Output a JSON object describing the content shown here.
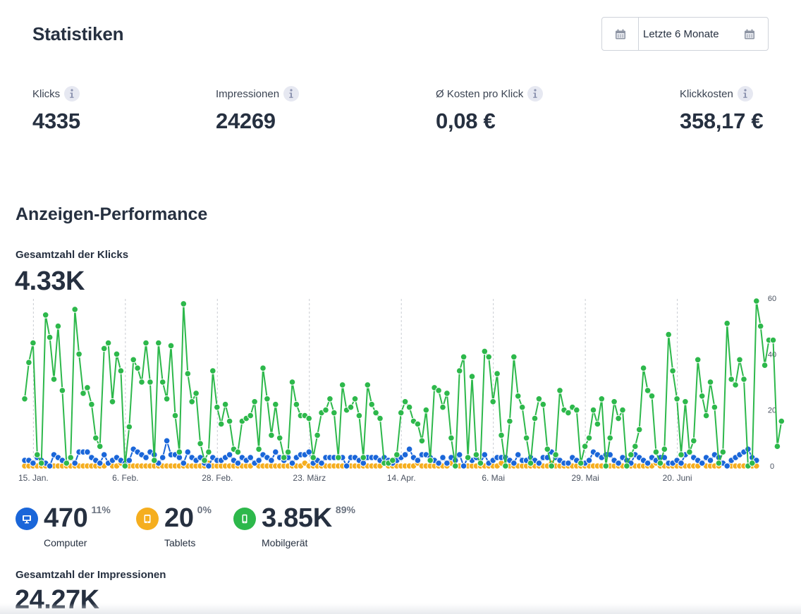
{
  "header": {
    "title": "Statistiken",
    "date_range": {
      "label": "Letzte 6 Monate",
      "left_icon": "calendar-icon",
      "right_icon": "calendar-icon"
    }
  },
  "kpis": [
    {
      "label": "Klicks",
      "value": "4335",
      "icon": "info-icon"
    },
    {
      "label": "Impressionen",
      "value": "24269",
      "icon": "info-icon"
    },
    {
      "label": "Ø Kosten pro Klick",
      "value": "0,08 €",
      "icon": "info-icon"
    },
    {
      "label": "Klickkosten",
      "value": "358,17 €",
      "icon": "info-icon"
    }
  ],
  "performance": {
    "title": "Anzeigen-Performance",
    "clicks_label": "Gesamtzahl der Klicks",
    "clicks_total": "4.33K",
    "impressions_label": "Gesamtzahl der Impressionen",
    "impressions_total": "24.27K",
    "devices": [
      {
        "name": "Computer",
        "value": "470",
        "percent": "11%",
        "color": "#1a66d9",
        "icon": "monitor-icon"
      },
      {
        "name": "Tablets",
        "value": "20",
        "percent": "0%",
        "color": "#f5ae1f",
        "icon": "tablet-icon"
      },
      {
        "name": "Mobilgerät",
        "value": "3.85K",
        "percent": "89%",
        "color": "#2db84b",
        "icon": "smartphone-icon"
      }
    ]
  },
  "chart_data": {
    "type": "line",
    "title": "Gesamtzahl der Klicks",
    "xlabel": "",
    "ylabel": "",
    "ylim": [
      0,
      60
    ],
    "y_ticks": [
      0,
      20,
      40,
      60
    ],
    "y_axis_side": "right",
    "x_start": "13. Jan.",
    "x_step": "1 day",
    "x_ticks": [
      {
        "label": "15. Jan.",
        "day_index": 2
      },
      {
        "label": "6. Feb.",
        "day_index": 24
      },
      {
        "label": "28. Feb.",
        "day_index": 46
      },
      {
        "label": "23. März",
        "day_index": 68
      },
      {
        "label": "14. Apr.",
        "day_index": 90
      },
      {
        "label": "6. Mai",
        "day_index": 112
      },
      {
        "label": "29. Mai",
        "day_index": 134
      },
      {
        "label": "20. Juni",
        "day_index": 156
      }
    ],
    "grid": "vertical-dashed",
    "legend": "none",
    "series": [
      {
        "name": "Mobilgerät",
        "color": "#2db84b",
        "values": [
          24,
          37,
          44,
          4,
          1,
          54,
          46,
          31,
          50,
          27,
          1,
          3,
          56,
          40,
          26,
          28,
          22,
          10,
          7,
          42,
          44,
          23,
          40,
          34,
          0,
          14,
          38,
          35,
          30,
          44,
          30,
          2,
          44,
          30,
          24,
          43,
          18,
          5,
          58,
          33,
          23,
          26,
          8,
          2,
          5,
          34,
          21,
          15,
          22,
          16,
          6,
          5,
          16,
          17,
          18,
          23,
          6,
          35,
          24,
          11,
          22,
          10,
          3,
          5,
          30,
          22,
          18,
          18,
          17,
          3,
          11,
          19,
          20,
          24,
          19,
          3,
          29,
          20,
          21,
          24,
          18,
          3,
          29,
          22,
          19,
          17,
          1,
          1,
          2,
          4,
          19,
          23,
          21,
          16,
          15,
          9,
          20,
          2,
          28,
          27,
          21,
          26,
          10,
          0,
          34,
          39,
          3,
          32,
          4,
          1,
          41,
          39,
          23,
          33,
          11,
          0,
          16,
          39,
          25,
          21,
          10,
          1,
          17,
          24,
          22,
          6,
          0,
          4,
          27,
          20,
          19,
          21,
          20,
          1,
          7,
          10,
          20,
          15,
          24,
          0,
          10,
          23,
          17,
          20,
          0,
          4,
          7,
          13,
          35,
          27,
          25,
          5,
          1,
          6,
          47,
          34,
          24,
          4,
          23,
          5,
          9,
          38,
          25,
          18,
          30,
          21,
          1,
          5,
          51,
          31,
          29,
          38,
          31,
          0,
          1,
          59,
          50,
          36,
          45,
          45,
          7,
          16
        ]
      },
      {
        "name": "Computer",
        "color": "#1a66d9",
        "values": [
          2,
          2,
          1,
          3,
          2,
          1,
          0,
          4,
          3,
          2,
          1,
          3,
          1,
          5,
          5,
          5,
          3,
          2,
          1,
          4,
          1,
          2,
          3,
          2,
          1,
          2,
          6,
          5,
          4,
          3,
          5,
          4,
          1,
          3,
          9,
          4,
          4,
          3,
          1,
          5,
          3,
          2,
          3,
          1,
          0,
          3,
          2,
          2,
          3,
          4,
          2,
          1,
          3,
          2,
          3,
          1,
          2,
          4,
          3,
          2,
          5,
          3,
          2,
          3,
          1,
          3,
          4,
          4,
          5,
          1,
          2,
          1,
          3,
          3,
          3,
          3,
          3,
          0,
          3,
          3,
          2,
          1,
          3,
          3,
          3,
          2,
          3,
          2,
          1,
          2,
          3,
          4,
          6,
          3,
          2,
          4,
          4,
          3,
          2,
          1,
          3,
          1,
          3,
          2,
          4,
          0,
          3,
          2,
          3,
          1,
          4,
          1,
          2,
          3,
          3,
          3,
          2,
          1,
          4,
          2,
          2,
          3,
          2,
          1,
          3,
          3,
          5,
          3,
          2,
          1,
          1,
          3,
          2,
          1,
          1,
          2,
          5,
          4,
          3,
          4,
          4,
          2,
          1,
          3,
          2,
          1,
          4,
          3,
          2,
          1,
          3,
          2,
          3,
          3,
          1,
          1,
          2,
          1,
          4,
          5,
          3,
          2,
          1,
          3,
          2,
          4,
          3,
          1,
          0,
          2,
          3,
          4,
          5,
          6,
          3,
          2
        ]
      },
      {
        "name": "Tablets",
        "color": "#f5ae1f",
        "values": [
          0,
          0,
          0,
          0,
          0,
          0,
          0,
          0,
          0,
          0,
          0,
          0,
          0,
          0,
          0,
          0,
          0,
          0,
          0,
          0,
          1,
          0,
          0,
          1,
          0,
          0,
          0,
          0,
          0,
          0,
          0,
          0,
          0,
          0,
          0,
          0,
          0,
          0,
          0,
          0,
          0,
          0,
          0,
          0,
          1,
          0,
          0,
          0,
          0,
          0,
          0,
          0,
          0,
          0,
          0,
          1,
          0,
          0,
          0,
          0,
          0,
          0,
          0,
          0,
          0,
          0,
          0,
          1,
          0,
          0,
          0,
          0,
          0,
          0,
          0,
          0,
          0,
          0,
          0,
          0,
          0,
          0,
          0,
          0,
          0,
          0,
          1,
          0,
          0,
          0,
          0,
          0,
          0,
          0,
          1,
          0,
          0,
          0,
          0,
          0,
          0,
          0,
          1,
          0,
          0,
          0,
          0,
          0,
          0,
          0,
          0,
          0,
          0,
          0,
          1,
          0,
          0,
          0,
          0,
          0,
          0,
          0,
          0,
          0,
          0,
          0,
          1,
          0,
          0,
          0,
          0,
          0,
          0,
          0,
          0,
          0,
          0,
          0,
          0,
          0,
          0,
          0,
          0,
          0,
          0,
          0,
          0,
          0,
          0,
          0,
          0,
          1,
          0,
          0,
          0,
          0,
          0,
          0,
          0,
          0,
          0,
          0,
          1,
          0,
          0,
          0,
          0,
          1,
          0,
          0,
          0,
          0,
          0,
          0,
          0,
          0
        ]
      }
    ]
  }
}
